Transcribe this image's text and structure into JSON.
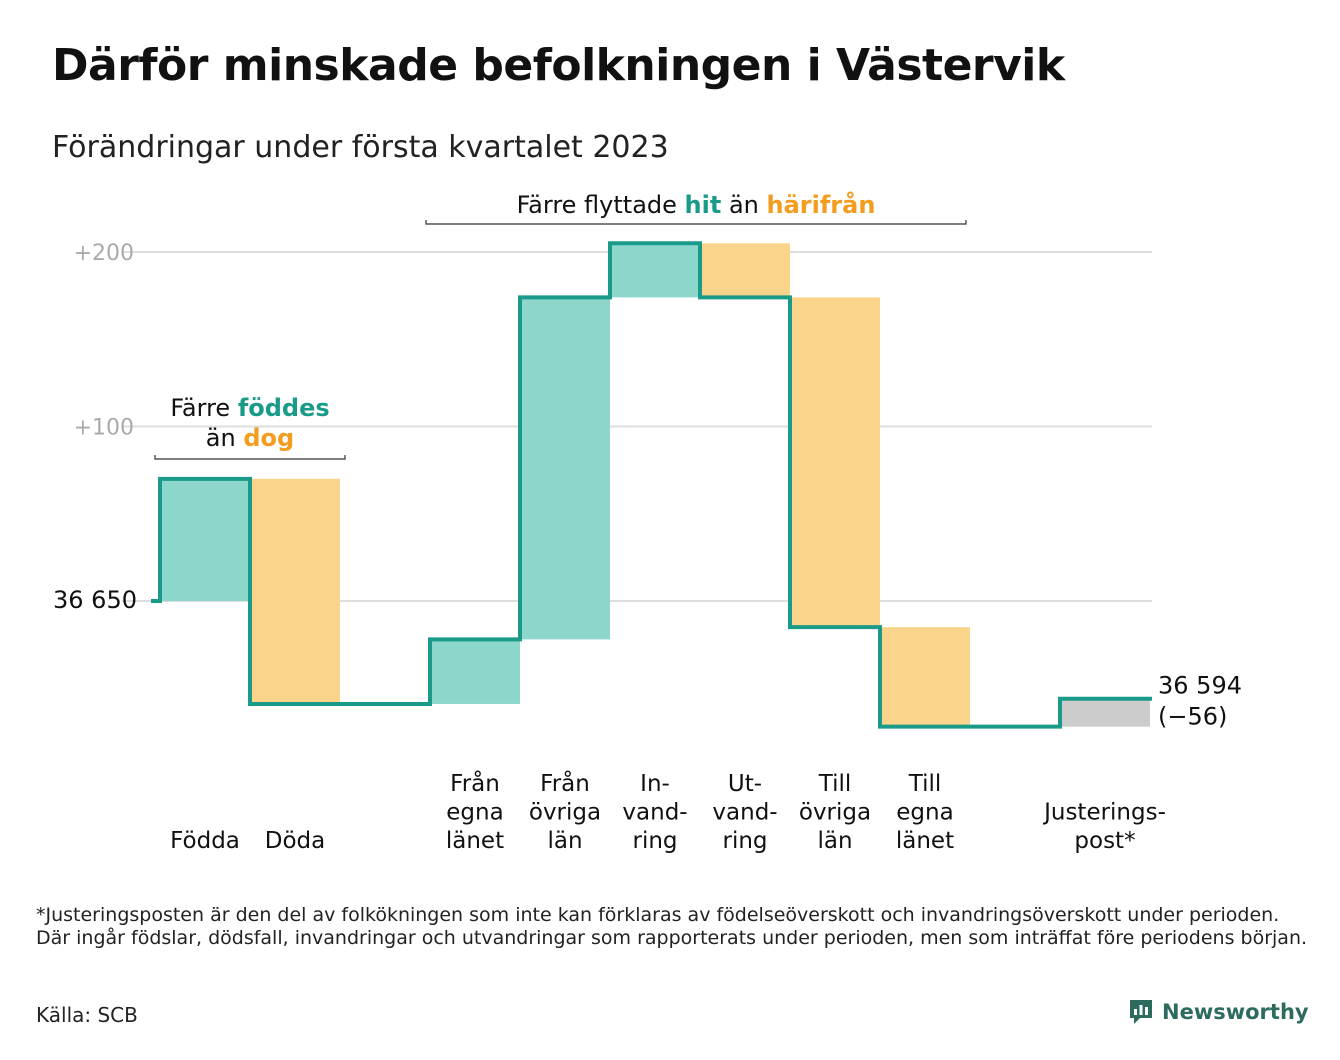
{
  "title": "Därför minskade befolkningen i Västervik",
  "subtitle": "Förändringar under första kvartalet 2023",
  "colors": {
    "teal": "#1a9a88",
    "teal_fill": "#8dd6cc",
    "orange": "#f39c1e",
    "orange_fill": "#fad48b",
    "gray_fill": "#cccccc",
    "grid": "#dddddd"
  },
  "chart_data": {
    "type": "waterfall",
    "start_value": 36650,
    "start_label": "36 650",
    "end_value": 36594,
    "end_label": "36 594",
    "end_change_label": "(−56)",
    "y_ticks": [
      {
        "label": "+200",
        "offset": 200
      },
      {
        "label": "+100",
        "offset": 100
      }
    ],
    "ylim": [
      -75,
      210
    ],
    "steps": [
      {
        "label_lines": [
          "Födda"
        ],
        "value": 70,
        "kind": "in"
      },
      {
        "label_lines": [
          "Döda"
        ],
        "value": -129,
        "kind": "out"
      },
      {
        "label_lines": [],
        "value": 0,
        "kind": "gap"
      },
      {
        "label_lines": [
          "Från",
          "egna",
          "länet"
        ],
        "value": 37,
        "kind": "in"
      },
      {
        "label_lines": [
          "Från",
          "övriga",
          "län"
        ],
        "value": 196,
        "kind": "in"
      },
      {
        "label_lines": [
          "In-",
          "vand-",
          "ring"
        ],
        "value": 31,
        "kind": "in"
      },
      {
        "label_lines": [
          "Ut-",
          "vand-",
          "ring"
        ],
        "value": -31,
        "kind": "out"
      },
      {
        "label_lines": [
          "Till",
          "övriga",
          "län"
        ],
        "value": -189,
        "kind": "out"
      },
      {
        "label_lines": [
          "Till",
          "egna",
          "länet"
        ],
        "value": -57,
        "kind": "out"
      },
      {
        "label_lines": [],
        "value": 0,
        "kind": "gap"
      },
      {
        "label_lines": [
          "Justerings-",
          "post*"
        ],
        "value": 16,
        "kind": "adjust"
      }
    ],
    "annotations": [
      {
        "name": "births-deaths-annotation",
        "parts": [
          {
            "text": "Färre ",
            "color": "#111111",
            "bold": false
          },
          {
            "text": "föddes",
            "color": "#1a9a88",
            "bold": true
          },
          {
            "newline": true
          },
          {
            "text": "än ",
            "color": "#111111",
            "bold": false
          },
          {
            "text": "dog",
            "color": "#f39c1e",
            "bold": true
          }
        ]
      },
      {
        "name": "migration-annotation",
        "parts": [
          {
            "text": "Färre flyttade ",
            "color": "#111111",
            "bold": false
          },
          {
            "text": "hit",
            "color": "#1a9a88",
            "bold": true
          },
          {
            "text": " än ",
            "color": "#111111",
            "bold": false
          },
          {
            "text": "härifrån",
            "color": "#f39c1e",
            "bold": true
          }
        ]
      }
    ]
  },
  "footnote": "*Justeringsposten är den del av folkökningen som inte kan förklaras av födelseöverskott och invandringsöverskott under perioden. Där ingår födslar, dödsfall, invandringar och utvandringar som rapporterats under perioden, men som inträffat före periodens början.",
  "source": "Källa: SCB",
  "brand": "Newsworthy",
  "icons": {
    "brand_logo": "bar-chart-speech-bubble-icon"
  }
}
